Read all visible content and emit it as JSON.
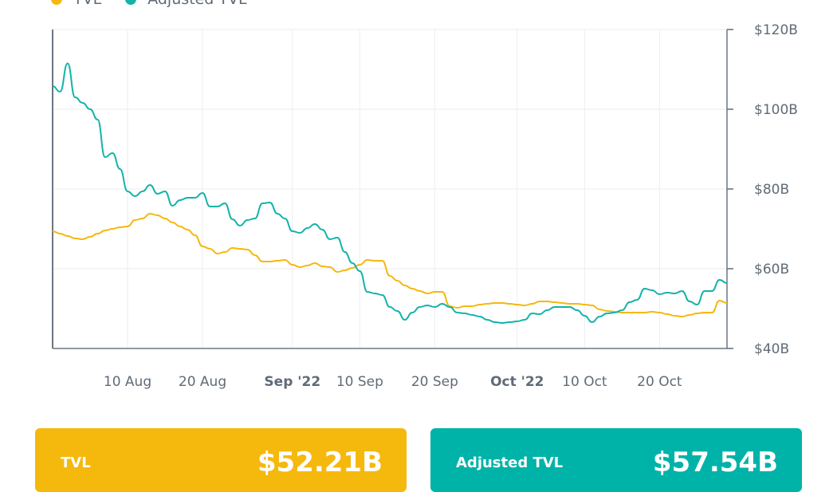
{
  "legend": [
    {
      "label": "TVL",
      "color": "#F5B80D"
    },
    {
      "label": "Adjusted TVL",
      "color": "#14B3AA"
    }
  ],
  "cards": [
    {
      "label": "TVL",
      "value": "$52.21B",
      "color": "#F5B80D"
    },
    {
      "label": "Adjusted TVL",
      "value": "$57.54B",
      "color": "#00B3A9"
    }
  ],
  "chart_data": {
    "type": "line",
    "title": "",
    "xlabel": "",
    "ylabel": "",
    "ylim": [
      40,
      120
    ],
    "y_axis_position": "right",
    "grid": true,
    "legend_placement": "top-left",
    "yticks": [
      {
        "value": 40,
        "label": "$40B"
      },
      {
        "value": 60,
        "label": "$60B"
      },
      {
        "value": 80,
        "label": "$80B"
      },
      {
        "value": 100,
        "label": "$100B"
      },
      {
        "value": 120,
        "label": "$120B"
      }
    ],
    "xticks": [
      {
        "date": "2022-08-10",
        "label": "10 Aug",
        "bold": false
      },
      {
        "date": "2022-08-20",
        "label": "20 Aug",
        "bold": false
      },
      {
        "date": "2022-09-01",
        "label": "Sep '22",
        "bold": true
      },
      {
        "date": "2022-09-10",
        "label": "10 Sep",
        "bold": false
      },
      {
        "date": "2022-09-20",
        "label": "20 Sep",
        "bold": false
      },
      {
        "date": "2022-10-01",
        "label": "Oct '22",
        "bold": true
      },
      {
        "date": "2022-10-10",
        "label": "10 Oct",
        "bold": false
      },
      {
        "date": "2022-10-20",
        "label": "20 Oct",
        "bold": false
      }
    ],
    "xlim": [
      "2022-07-31",
      "2022-10-29"
    ],
    "x": [
      "2022-07-31",
      "2022-08-01",
      "2022-08-02",
      "2022-08-03",
      "2022-08-04",
      "2022-08-05",
      "2022-08-06",
      "2022-08-07",
      "2022-08-08",
      "2022-08-09",
      "2022-08-10",
      "2022-08-11",
      "2022-08-12",
      "2022-08-13",
      "2022-08-14",
      "2022-08-15",
      "2022-08-16",
      "2022-08-17",
      "2022-08-18",
      "2022-08-19",
      "2022-08-20",
      "2022-08-21",
      "2022-08-22",
      "2022-08-23",
      "2022-08-24",
      "2022-08-25",
      "2022-08-26",
      "2022-08-27",
      "2022-08-28",
      "2022-08-29",
      "2022-08-30",
      "2022-08-31",
      "2022-09-01",
      "2022-09-02",
      "2022-09-03",
      "2022-09-04",
      "2022-09-05",
      "2022-09-06",
      "2022-09-07",
      "2022-09-08",
      "2022-09-09",
      "2022-09-10",
      "2022-09-11",
      "2022-09-12",
      "2022-09-13",
      "2022-09-14",
      "2022-09-15",
      "2022-09-16",
      "2022-09-17",
      "2022-09-18",
      "2022-09-19",
      "2022-09-20",
      "2022-09-21",
      "2022-09-22",
      "2022-09-23",
      "2022-09-24",
      "2022-09-25",
      "2022-09-26",
      "2022-09-27",
      "2022-09-28",
      "2022-09-29",
      "2022-09-30",
      "2022-10-01",
      "2022-10-02",
      "2022-10-03",
      "2022-10-04",
      "2022-10-05",
      "2022-10-06",
      "2022-10-07",
      "2022-10-08",
      "2022-10-09",
      "2022-10-10",
      "2022-10-11",
      "2022-10-12",
      "2022-10-13",
      "2022-10-14",
      "2022-10-15",
      "2022-10-16",
      "2022-10-17",
      "2022-10-18",
      "2022-10-19",
      "2022-10-20",
      "2022-10-21",
      "2022-10-22",
      "2022-10-23",
      "2022-10-24",
      "2022-10-25",
      "2022-10-26",
      "2022-10-27",
      "2022-10-28",
      "2022-10-29"
    ],
    "series": [
      {
        "name": "TVL",
        "color": "#F5B80D",
        "values": [
          69.4,
          68.8,
          68.2,
          67.6,
          67.4,
          68,
          68.8,
          69.6,
          70,
          70.4,
          70.6,
          72.2,
          72.6,
          73.8,
          73.4,
          72.6,
          71.6,
          70.6,
          69.8,
          68.4,
          65.6,
          65,
          63.8,
          64.2,
          65.2,
          65,
          64.8,
          63.4,
          61.8,
          61.8,
          62,
          62.2,
          61,
          60.4,
          60.8,
          61.4,
          60.6,
          60.4,
          59.2,
          59.6,
          60.2,
          61,
          62.2,
          62,
          62,
          58.2,
          57,
          55.8,
          55,
          54.4,
          53.8,
          54.2,
          54.2,
          50.6,
          50.2,
          50.6,
          50.6,
          51,
          51.2,
          51.4,
          51.4,
          51.2,
          51,
          50.8,
          51.2,
          51.8,
          51.8,
          51.6,
          51.4,
          51.2,
          51.2,
          51,
          50.8,
          49.8,
          49.4,
          49.2,
          49,
          49,
          49,
          49,
          49.2,
          49,
          48.6,
          48.2,
          48,
          48.4,
          48.8,
          49,
          49,
          52,
          51.4
        ]
      },
      {
        "name": "Adjusted TVL",
        "color": "#14B3AA",
        "values": [
          105.8,
          104.4,
          111.5,
          103,
          101.6,
          100,
          97.4,
          88,
          89,
          85,
          79.4,
          78.2,
          79.4,
          81,
          78.8,
          79.4,
          75.8,
          77.2,
          77.8,
          77.8,
          79,
          75.6,
          75.6,
          76.4,
          72.4,
          70.8,
          72.2,
          72.6,
          76.4,
          76.6,
          73.8,
          72.6,
          69.4,
          69,
          70.2,
          71.2,
          69.8,
          67.4,
          67.8,
          64.2,
          61.4,
          59.4,
          54.2,
          53.8,
          53.4,
          50.4,
          49.4,
          47.2,
          49,
          50.4,
          50.8,
          50.4,
          51.2,
          50.4,
          49,
          48.8,
          48.4,
          48,
          47.2,
          46.6,
          46.4,
          46.6,
          46.8,
          47.2,
          48.8,
          48.6,
          49.6,
          50.4,
          50.4,
          50.4,
          49.6,
          48.2,
          46.6,
          48,
          48.8,
          49,
          49.6,
          51.6,
          52.2,
          55,
          54.6,
          53.6,
          54,
          53.8,
          54.4,
          51.8,
          51,
          54.4,
          54.4,
          57.2,
          56.4
        ]
      }
    ]
  }
}
